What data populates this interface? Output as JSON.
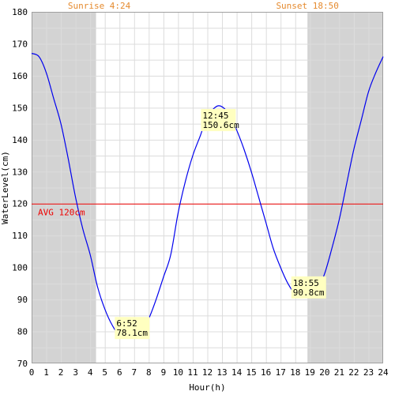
{
  "chart_data": {
    "type": "line",
    "xlabel": "Hour(h)",
    "ylabel": "WaterLevel(cm)",
    "xlim": [
      0,
      24
    ],
    "ylim": [
      70,
      180
    ],
    "x_ticks": [
      "0",
      "1",
      "2",
      "3",
      "4",
      "5",
      "6",
      "7",
      "8",
      "9",
      "10",
      "11",
      "12",
      "13",
      "14",
      "15",
      "16",
      "17",
      "18",
      "19",
      "20",
      "21",
      "22",
      "23",
      "24"
    ],
    "y_ticks": [
      "70",
      "80",
      "90",
      "100",
      "110",
      "120",
      "130",
      "140",
      "150",
      "160",
      "170",
      "180"
    ],
    "grid": true,
    "sunrise": {
      "label": "Sunrise 4:24",
      "hour": 4.4
    },
    "sunset": {
      "label": "Sunset 18:50",
      "hour": 18.833
    },
    "average": {
      "label": "AVG 120cm",
      "value": 120
    },
    "extrema": [
      {
        "time": "6:52",
        "level": "78.1cm",
        "hour": 6.867,
        "value": 78.1,
        "kind": "low"
      },
      {
        "time": "12:45",
        "level": "150.6cm",
        "hour": 12.75,
        "value": 150.6,
        "kind": "high"
      },
      {
        "time": "18:55",
        "level": "90.8cm",
        "hour": 18.917,
        "value": 90.8,
        "kind": "low"
      }
    ],
    "series": [
      {
        "values": [
          [
            0,
            167
          ],
          [
            0.5,
            166
          ],
          [
            1,
            161
          ],
          [
            1.5,
            153
          ],
          [
            2,
            145
          ],
          [
            2.5,
            134
          ],
          [
            3,
            122
          ],
          [
            3.5,
            112
          ],
          [
            4,
            104
          ],
          [
            4.5,
            94
          ],
          [
            5,
            87
          ],
          [
            5.5,
            82
          ],
          [
            6,
            79
          ],
          [
            6.867,
            78.1
          ],
          [
            7.5,
            80
          ],
          [
            8,
            84
          ],
          [
            8.5,
            90
          ],
          [
            9,
            97
          ],
          [
            9.5,
            104
          ],
          [
            10,
            117
          ],
          [
            10.5,
            127
          ],
          [
            11,
            135
          ],
          [
            11.5,
            141
          ],
          [
            12,
            147
          ],
          [
            12.75,
            150.6
          ],
          [
            13.5,
            148
          ],
          [
            14,
            143
          ],
          [
            14.5,
            137
          ],
          [
            15,
            130
          ],
          [
            15.5,
            122
          ],
          [
            16,
            114
          ],
          [
            16.5,
            106
          ],
          [
            17,
            100
          ],
          [
            17.5,
            95
          ],
          [
            18,
            92
          ],
          [
            18.917,
            90.8
          ],
          [
            19.5,
            93
          ],
          [
            20,
            98
          ],
          [
            20.5,
            106
          ],
          [
            21,
            115
          ],
          [
            21.5,
            126
          ],
          [
            22,
            137
          ],
          [
            22.5,
            146
          ],
          [
            23,
            155
          ],
          [
            23.5,
            161
          ],
          [
            24,
            166
          ]
        ],
        "color": "#0000ee"
      }
    ],
    "colors": {
      "night": "#d3d3d3",
      "grid": "#dcdcdc",
      "avg_line": "#ee0000",
      "sun_text": "#e58a2e",
      "label_bg": "#ffffc0",
      "axis_text": "#000000"
    }
  }
}
